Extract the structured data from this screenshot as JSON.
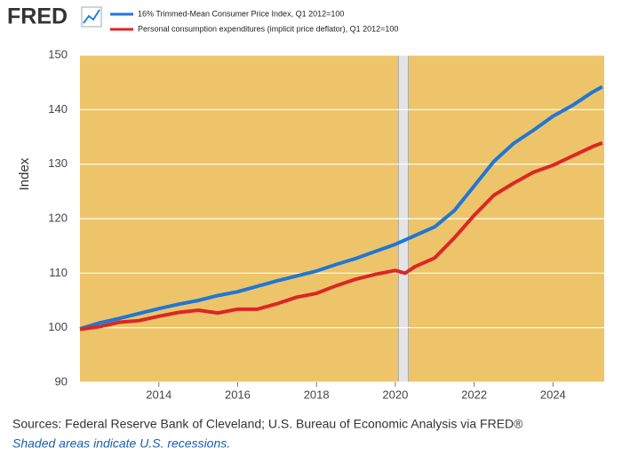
{
  "chart_data": {
    "type": "line",
    "logo": "FRED",
    "ylabel": "Index",
    "source": "Sources: Federal Reserve Bank of Cleveland; U.S. Bureau of Economic Analysis via FRED®",
    "note": "Shaded areas indicate U.S. recessions.",
    "x": [
      2012,
      2012.5,
      2013,
      2013.5,
      2014,
      2014.5,
      2015,
      2015.5,
      2016,
      2016.5,
      2017,
      2017.5,
      2018,
      2018.5,
      2019,
      2019.5,
      2020,
      2020.25,
      2020.5,
      2021,
      2021.5,
      2022,
      2022.5,
      2023,
      2023.5,
      2024,
      2024.5,
      2025,
      2025.25
    ],
    "series": [
      {
        "name": "16% Trimmed-Mean Consumer Price Index, Q1 2012=100",
        "color": "#1f77d4",
        "values": [
          99.8,
          100.9,
          101.7,
          102.6,
          103.5,
          104.3,
          105.0,
          105.9,
          106.6,
          107.6,
          108.6,
          109.5,
          110.4,
          111.6,
          112.7,
          114.0,
          115.3,
          116.1,
          116.9,
          118.5,
          121.5,
          126.0,
          130.5,
          133.8,
          136.2,
          138.8,
          140.8,
          143.2,
          144.2
        ]
      },
      {
        "name": "Personal consumption expenditures (implicit price deflator), Q1 2012=100",
        "color": "#dc2626",
        "values": [
          99.7,
          100.2,
          101.0,
          101.3,
          102.1,
          102.8,
          103.2,
          102.7,
          103.4,
          103.4,
          104.4,
          105.6,
          106.3,
          107.7,
          108.9,
          109.8,
          110.5,
          110.0,
          111.2,
          112.8,
          116.5,
          120.6,
          124.3,
          126.5,
          128.5,
          129.8,
          131.5,
          133.2,
          133.9
        ]
      }
    ],
    "recessions": [
      [
        2020.08,
        2020.33
      ]
    ],
    "xlim": [
      2012,
      2025.3
    ],
    "xticks": [
      2014,
      2016,
      2018,
      2020,
      2022,
      2024
    ],
    "ylim": [
      90,
      150
    ],
    "yticks": [
      90,
      100,
      110,
      120,
      130,
      140,
      150
    ],
    "grid": true,
    "plot_background": "#edc469"
  }
}
